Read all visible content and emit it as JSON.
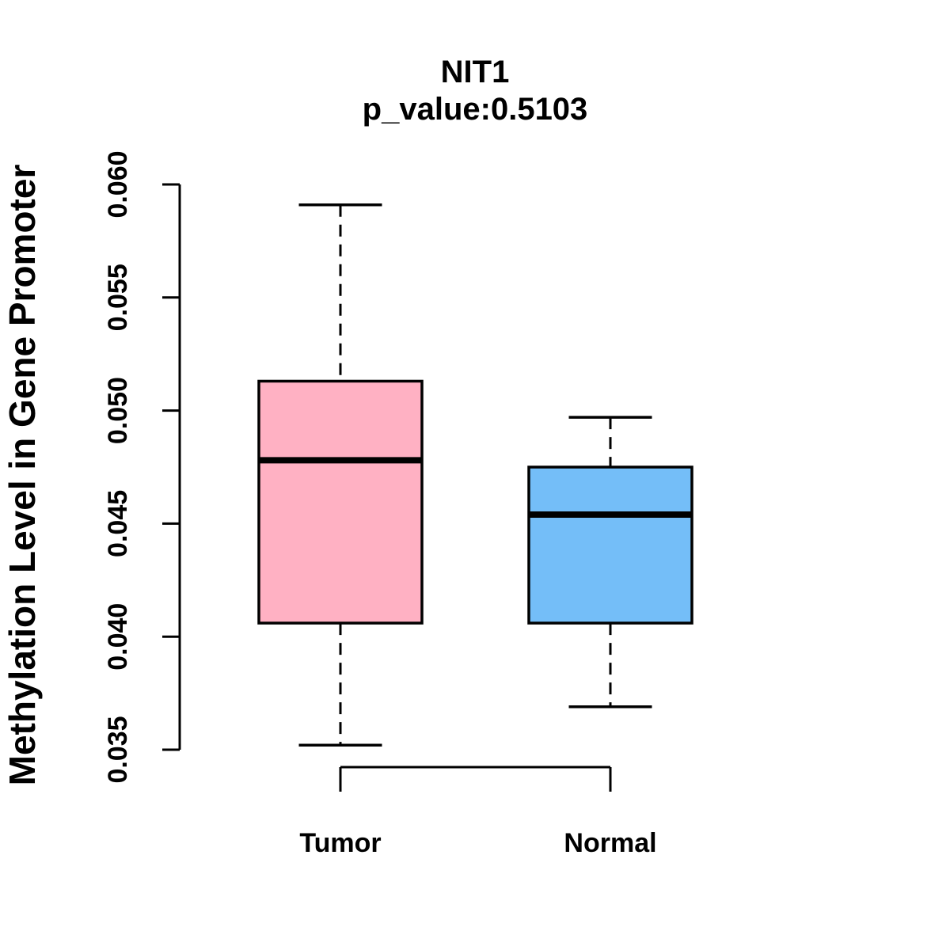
{
  "title": "NIT1",
  "subtitle": "p_value:0.5103",
  "chart_data": {
    "type": "boxplot",
    "title": "NIT1",
    "subtitle": "p_value:0.5103",
    "xlabel": "",
    "ylabel": "Methylation Level in Gene Promoter",
    "ylim": [
      0.035,
      0.06
    ],
    "ytick_labels": [
      "0.035",
      "0.040",
      "0.045",
      "0.050",
      "0.055",
      "0.060"
    ],
    "categories": [
      "Tumor",
      "Normal"
    ],
    "grid": false,
    "legend": null,
    "series": [
      {
        "name": "Tumor",
        "fill": "#ffb1c3",
        "lower_whisker": 0.0352,
        "q1": 0.0406,
        "median": 0.0478,
        "q3": 0.0513,
        "upper_whisker": 0.0591
      },
      {
        "name": "Normal",
        "fill": "#74bef8",
        "lower_whisker": 0.0369,
        "q1": 0.0406,
        "median": 0.0454,
        "q3": 0.0475,
        "upper_whisker": 0.0497
      }
    ]
  },
  "colors": {
    "tumor_fill": "#ffb1c3",
    "normal_fill": "#74bef8",
    "stroke": "#000000",
    "background": "#ffffff"
  }
}
